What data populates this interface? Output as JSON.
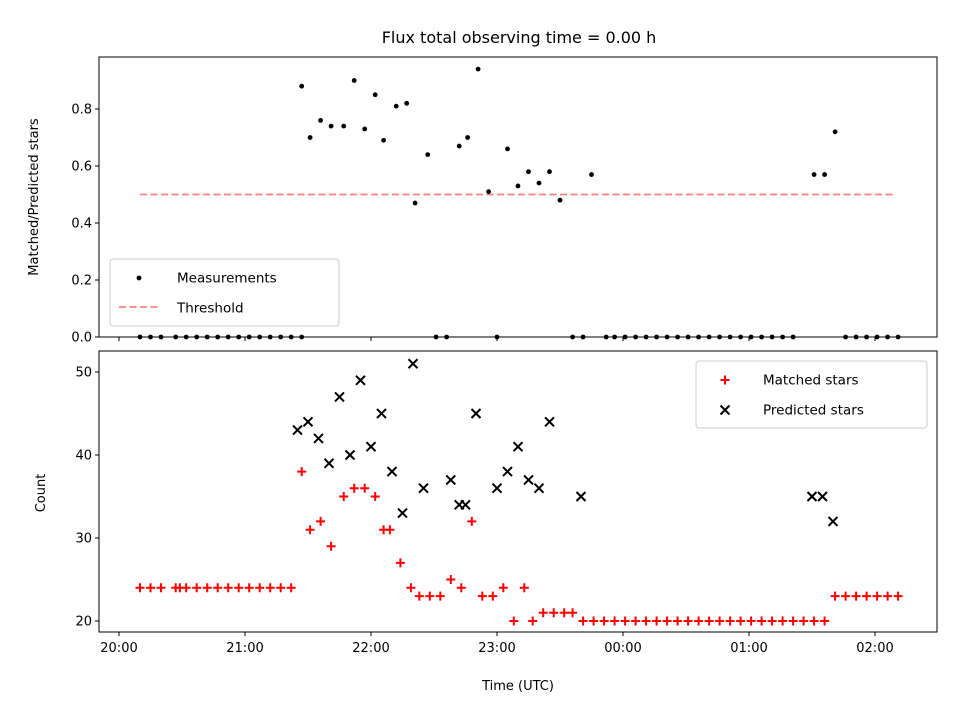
{
  "chart_data": [
    {
      "type": "scatter",
      "title": "Flux total observing time = 0.00 h",
      "xlabel": "",
      "ylabel": "Matched/Predicted stars",
      "ylim": [
        0,
        1.0
      ],
      "yticks": [
        "0.0",
        "0.2",
        "0.4",
        "0.6",
        "0.8"
      ],
      "xlim": [
        "20:00",
        "02:15"
      ],
      "legend": {
        "location": "lower-left",
        "entries": [
          "Measurements",
          "Threshold"
        ]
      },
      "series": [
        {
          "name": "Measurements",
          "marker": "dot",
          "color": "#000000",
          "points": [
            [
              "20:10",
              0.0
            ],
            [
              "20:15",
              0.0
            ],
            [
              "20:20",
              0.0
            ],
            [
              "20:27",
              0.0
            ],
            [
              "20:32",
              0.0
            ],
            [
              "20:37",
              0.0
            ],
            [
              "20:42",
              0.0
            ],
            [
              "20:47",
              0.0
            ],
            [
              "20:52",
              0.0
            ],
            [
              "20:57",
              0.0
            ],
            [
              "21:02",
              0.0
            ],
            [
              "21:07",
              0.0
            ],
            [
              "21:12",
              0.0
            ],
            [
              "21:17",
              0.0
            ],
            [
              "21:22",
              0.0
            ],
            [
              "21:27",
              0.0
            ],
            [
              "21:27",
              0.88
            ],
            [
              "21:31",
              0.7
            ],
            [
              "21:36",
              0.76
            ],
            [
              "21:41",
              0.74
            ],
            [
              "21:47",
              0.74
            ],
            [
              "21:52",
              0.9
            ],
            [
              "21:57",
              0.73
            ],
            [
              "22:02",
              0.85
            ],
            [
              "22:06",
              0.69
            ],
            [
              "22:12",
              0.81
            ],
            [
              "22:17",
              0.82
            ],
            [
              "22:21",
              0.47
            ],
            [
              "22:27",
              0.64
            ],
            [
              "22:31",
              0.0
            ],
            [
              "22:36",
              0.0
            ],
            [
              "22:42",
              0.67
            ],
            [
              "22:46",
              0.7
            ],
            [
              "22:51",
              0.94
            ],
            [
              "22:56",
              0.51
            ],
            [
              "23:00",
              0.0
            ],
            [
              "23:05",
              0.66
            ],
            [
              "23:10",
              0.53
            ],
            [
              "23:15",
              0.58
            ],
            [
              "23:20",
              0.54
            ],
            [
              "23:25",
              0.58
            ],
            [
              "23:30",
              0.48
            ],
            [
              "23:36",
              0.0
            ],
            [
              "23:41",
              0.0
            ],
            [
              "23:45",
              0.57
            ],
            [
              "23:52",
              0.0
            ],
            [
              "23:56",
              0.0
            ],
            [
              "00:01",
              0.0
            ],
            [
              "00:06",
              0.0
            ],
            [
              "00:11",
              0.0
            ],
            [
              "00:16",
              0.0
            ],
            [
              "00:21",
              0.0
            ],
            [
              "00:26",
              0.0
            ],
            [
              "00:31",
              0.0
            ],
            [
              "00:36",
              0.0
            ],
            [
              "00:41",
              0.0
            ],
            [
              "00:46",
              0.0
            ],
            [
              "00:51",
              0.0
            ],
            [
              "00:56",
              0.0
            ],
            [
              "01:01",
              0.0
            ],
            [
              "01:06",
              0.0
            ],
            [
              "01:11",
              0.0
            ],
            [
              "01:16",
              0.0
            ],
            [
              "01:21",
              0.0
            ],
            [
              "01:31",
              0.57
            ],
            [
              "01:36",
              0.57
            ],
            [
              "01:41",
              0.72
            ],
            [
              "01:46",
              0.0
            ],
            [
              "01:51",
              0.0
            ],
            [
              "01:56",
              0.0
            ],
            [
              "02:01",
              0.0
            ],
            [
              "02:06",
              0.0
            ],
            [
              "02:11",
              0.0
            ]
          ]
        },
        {
          "name": "Threshold",
          "line": "dashed",
          "color": "#ff8080",
          "y": 0.5,
          "x": [
            "20:10",
            "02:10"
          ]
        }
      ]
    },
    {
      "type": "scatter",
      "title": "",
      "xlabel": "Time (UTC)",
      "ylabel": "Count",
      "ylim": [
        18.5,
        52.5
      ],
      "yticks": [
        "20",
        "30",
        "40",
        "50"
      ],
      "xticks": [
        "20:00",
        "21:00",
        "22:00",
        "23:00",
        "00:00",
        "01:00",
        "02:00"
      ],
      "xlim": [
        "20:00",
        "02:15"
      ],
      "legend": {
        "location": "top-right",
        "entries": [
          "Matched stars",
          "Predicted stars"
        ]
      },
      "series": [
        {
          "name": "Matched stars",
          "marker": "plus",
          "color": "#ff0000",
          "points": [
            [
              "20:10",
              24
            ],
            [
              "20:15",
              24
            ],
            [
              "20:20",
              24
            ],
            [
              "20:27",
              24
            ],
            [
              "20:29",
              24
            ],
            [
              "20:32",
              24
            ],
            [
              "20:37",
              24
            ],
            [
              "20:42",
              24
            ],
            [
              "20:47",
              24
            ],
            [
              "20:52",
              24
            ],
            [
              "20:57",
              24
            ],
            [
              "21:02",
              24
            ],
            [
              "21:07",
              24
            ],
            [
              "21:12",
              24
            ],
            [
              "21:17",
              24
            ],
            [
              "21:22",
              24
            ],
            [
              "21:27",
              38
            ],
            [
              "21:31",
              31
            ],
            [
              "21:36",
              32
            ],
            [
              "21:41",
              29
            ],
            [
              "21:47",
              35
            ],
            [
              "21:52",
              36
            ],
            [
              "21:57",
              36
            ],
            [
              "22:02",
              35
            ],
            [
              "22:06",
              31
            ],
            [
              "22:09",
              31
            ],
            [
              "22:14",
              27
            ],
            [
              "22:19",
              24
            ],
            [
              "22:23",
              23
            ],
            [
              "22:28",
              23
            ],
            [
              "22:33",
              23
            ],
            [
              "22:38",
              25
            ],
            [
              "22:43",
              24
            ],
            [
              "22:48",
              32
            ],
            [
              "22:53",
              23
            ],
            [
              "22:58",
              23
            ],
            [
              "23:03",
              24
            ],
            [
              "23:08",
              20
            ],
            [
              "23:13",
              24
            ],
            [
              "23:17",
              20
            ],
            [
              "23:22",
              21
            ],
            [
              "23:27",
              21
            ],
            [
              "23:32",
              21
            ],
            [
              "23:36",
              21
            ],
            [
              "23:41",
              20
            ],
            [
              "23:46",
              20
            ],
            [
              "23:51",
              20
            ],
            [
              "23:56",
              20
            ],
            [
              "00:01",
              20
            ],
            [
              "00:06",
              20
            ],
            [
              "00:11",
              20
            ],
            [
              "00:16",
              20
            ],
            [
              "00:21",
              20
            ],
            [
              "00:26",
              20
            ],
            [
              "00:31",
              20
            ],
            [
              "00:36",
              20
            ],
            [
              "00:41",
              20
            ],
            [
              "00:46",
              20
            ],
            [
              "00:51",
              20
            ],
            [
              "00:56",
              20
            ],
            [
              "01:01",
              20
            ],
            [
              "01:06",
              20
            ],
            [
              "01:11",
              20
            ],
            [
              "01:16",
              20
            ],
            [
              "01:21",
              20
            ],
            [
              "01:26",
              20
            ],
            [
              "01:31",
              20
            ],
            [
              "01:36",
              20
            ],
            [
              "01:41",
              23
            ],
            [
              "01:46",
              23
            ],
            [
              "01:51",
              23
            ],
            [
              "01:56",
              23
            ],
            [
              "02:01",
              23
            ],
            [
              "02:06",
              23
            ],
            [
              "02:11",
              23
            ]
          ]
        },
        {
          "name": "Predicted stars",
          "marker": "x",
          "color": "#000000",
          "points": [
            [
              "21:25",
              43
            ],
            [
              "21:30",
              44
            ],
            [
              "21:35",
              42
            ],
            [
              "21:40",
              39
            ],
            [
              "21:45",
              47
            ],
            [
              "21:50",
              40
            ],
            [
              "21:55",
              49
            ],
            [
              "22:00",
              41
            ],
            [
              "22:05",
              45
            ],
            [
              "22:10",
              38
            ],
            [
              "22:15",
              33
            ],
            [
              "22:20",
              51
            ],
            [
              "22:25",
              36
            ],
            [
              "22:38",
              37
            ],
            [
              "22:42",
              34
            ],
            [
              "22:45",
              34
            ],
            [
              "22:50",
              45
            ],
            [
              "23:00",
              36
            ],
            [
              "23:05",
              38
            ],
            [
              "23:10",
              41
            ],
            [
              "23:15",
              37
            ],
            [
              "23:20",
              36
            ],
            [
              "23:25",
              44
            ],
            [
              "23:40",
              35
            ],
            [
              "01:30",
              35
            ],
            [
              "01:35",
              35
            ],
            [
              "01:40",
              32
            ]
          ]
        }
      ]
    }
  ]
}
